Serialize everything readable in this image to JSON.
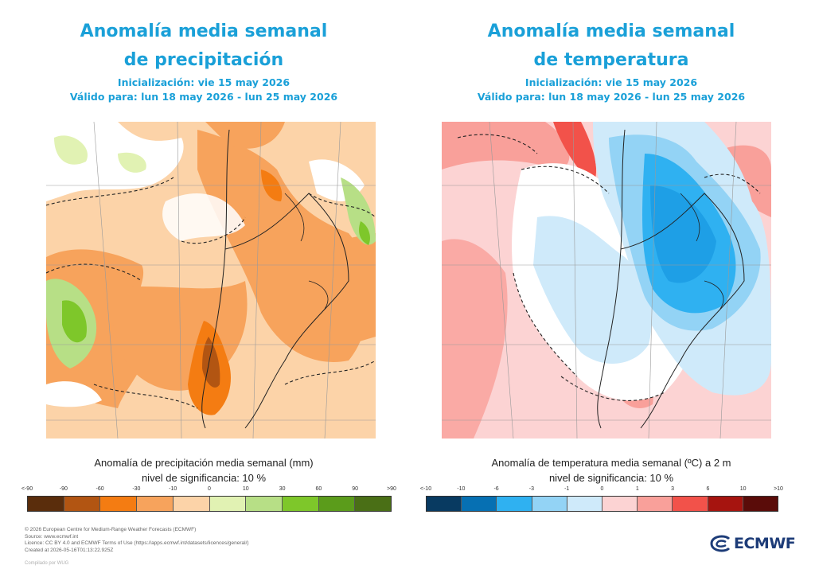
{
  "panels": [
    {
      "title_line1": "Anomalía media semanal",
      "title_line2": "de precipitación",
      "init": "Inicialización: vie 15 may 2026",
      "valid": "Válido para: lun 18 may 2026 - lun 25 may 2026",
      "legend_title": "Anomalía de precipitación media semanal (mm)",
      "significance": "nivel de significancia: 10 %",
      "ticks": [
        "<-90",
        "-90",
        "-60",
        "-30",
        "-10",
        "0",
        "10",
        "30",
        "60",
        "90",
        ">90"
      ],
      "colors": [
        "#5a2d0c",
        "#b25512",
        "#f47c12",
        "#f7a35c",
        "#fcd3a8",
        "#e1f2b3",
        "#b7df86",
        "#7ec72a",
        "#5b9c1b",
        "#4a6f16"
      ]
    },
    {
      "title_line1": "Anomalía media semanal",
      "title_line2": "de temperatura",
      "init": "Inicialización: vie 15 may 2026",
      "valid": "Válido para: lun 18 may 2026 - lun 25 may 2026",
      "legend_title": "Anomalía de temperatura media semanal (ºC) a 2 m",
      "significance": "nivel de significancia: 10 %",
      "ticks": [
        "<-10",
        "-10",
        "-6",
        "-3",
        "-1",
        "0",
        "1",
        "3",
        "6",
        "10",
        ">10"
      ],
      "colors": [
        "#083a61",
        "#0670b3",
        "#2fb1f1",
        "#93d3f5",
        "#cfeafa",
        "#fcd3d3",
        "#f9a09a",
        "#f2524a",
        "#a6140f",
        "#5a0c09"
      ]
    }
  ],
  "footer": {
    "line1": "© 2026 European Centre for Medium-Range Weather Forecasts (ECMWF)",
    "line2": "Source: www.ecmwf.int",
    "line3": "Licence: CC BY 4.0 and ECMWF Terms of Use (https://apps.ecmwf.int/datasets/licences/general/)",
    "line4": "Created at 2026-05-16T01:13:22.925Z",
    "credit": "Compilado por WUG"
  },
  "logo": {
    "text": "ECMWF"
  }
}
